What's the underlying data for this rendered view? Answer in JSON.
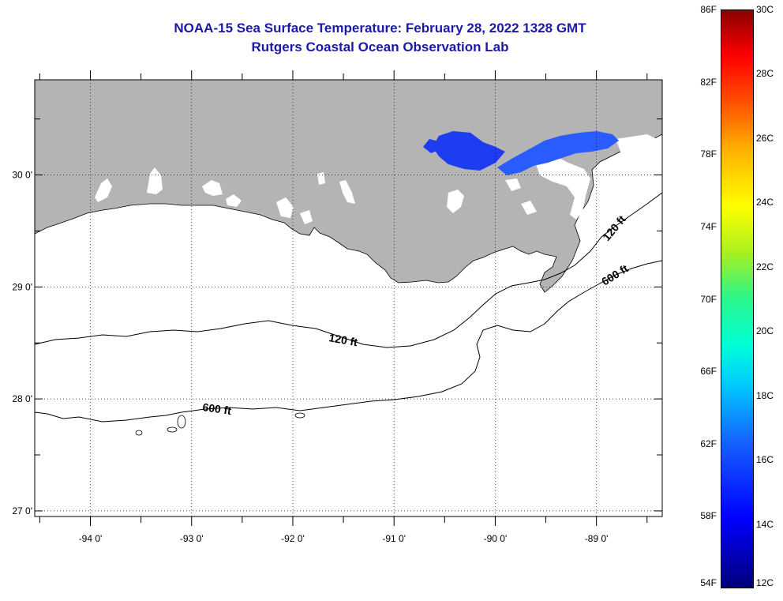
{
  "title": {
    "line1": "NOAA-15 Sea Surface Temperature:  February 28, 2022 1328 GMT",
    "line2": "Rutgers Coastal Ocean Observation Lab"
  },
  "map": {
    "lon_range": [
      -94.55,
      -88.35
    ],
    "lat_range": [
      26.95,
      30.85
    ],
    "lon_ticks": [
      {
        "value": -94,
        "label": "-94 0'"
      },
      {
        "value": -93,
        "label": "-93 0'"
      },
      {
        "value": -92,
        "label": "-92 0'"
      },
      {
        "value": -91,
        "label": "-91 0'"
      },
      {
        "value": -90,
        "label": "-90 0'"
      },
      {
        "value": -89,
        "label": "-89 0'"
      }
    ],
    "lat_ticks": [
      {
        "value": 30,
        "label": "30 0'"
      },
      {
        "value": 29,
        "label": "29 0'"
      },
      {
        "value": 28,
        "label": "28 0'"
      },
      {
        "value": 27,
        "label": "27 0'"
      }
    ],
    "contour_labels": {
      "c120_west": "120 ft",
      "c600_west": "600 ft",
      "c120_east": "120 ft",
      "c600_east": "600 ft"
    },
    "colors": {
      "land": "#b4b4b4",
      "sst_patch": "#1e3cf0",
      "sst_patch_light": "#2a5cff"
    }
  },
  "colorbar": {
    "fahrenheit_labels": [
      "86F",
      "82F",
      "78F",
      "74F",
      "70F",
      "66F",
      "62F",
      "58F",
      "54F"
    ],
    "celsius_labels": [
      "30C",
      "28C",
      "26C",
      "24C",
      "22C",
      "20C",
      "18C",
      "16C",
      "14C",
      "12C"
    ],
    "range_f": [
      54,
      86
    ],
    "range_c": [
      12,
      30
    ]
  }
}
